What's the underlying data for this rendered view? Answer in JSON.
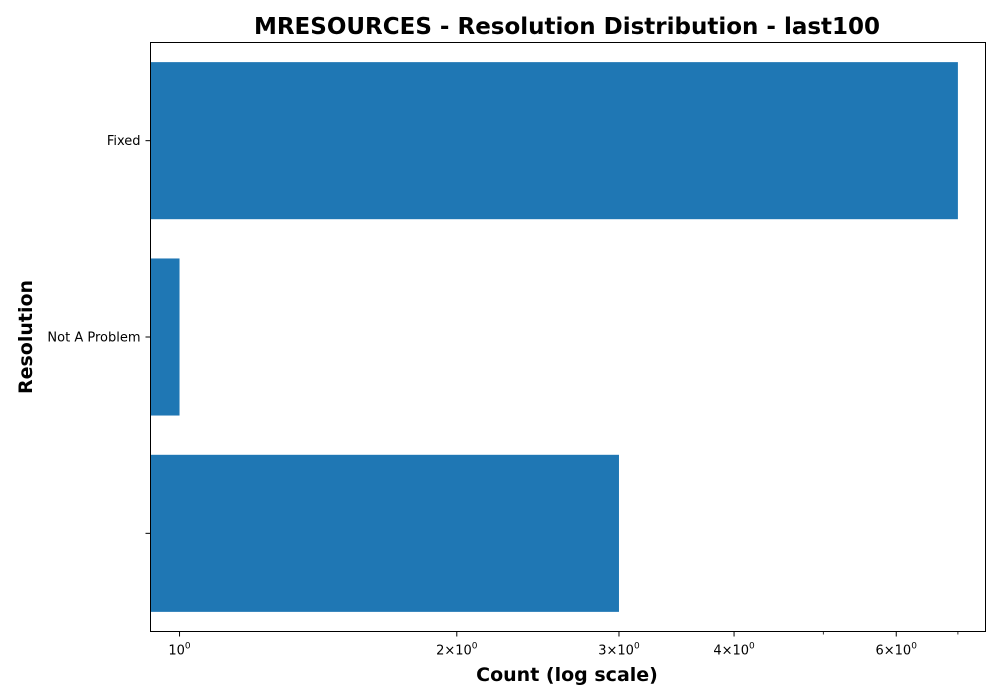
{
  "chart_data": {
    "type": "bar",
    "orientation": "horizontal",
    "title": "MRESOURCES - Resolution Distribution - last100",
    "xlabel": "Count (log scale)",
    "ylabel": "Resolution",
    "x_scale": "log",
    "xlim": [
      0.93,
      7.5
    ],
    "grid": false,
    "legend": "none",
    "bar_color": "#1f77b4",
    "categories": [
      "Fixed",
      "Not A Problem",
      ""
    ],
    "values": [
      7,
      1,
      3
    ],
    "x_major_ticks": [
      {
        "value": 1,
        "base": "10",
        "exp": "0"
      },
      {
        "value": 2,
        "base": "2×10",
        "exp": "0"
      },
      {
        "value": 3,
        "base": "3×10",
        "exp": "0"
      },
      {
        "value": 4,
        "base": "4×10",
        "exp": "0"
      },
      {
        "value": 6,
        "base": "6×10",
        "exp": "0"
      }
    ],
    "x_minor_ticks": [
      5,
      7
    ]
  }
}
